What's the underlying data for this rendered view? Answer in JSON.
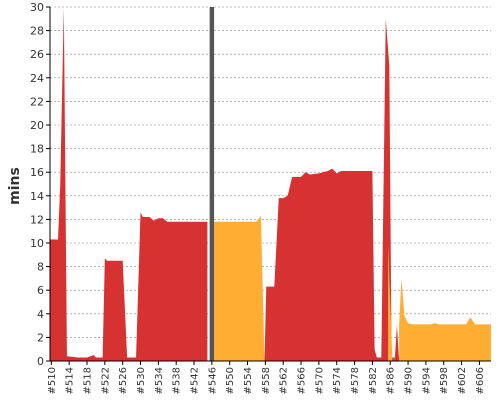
{
  "chart_data": {
    "type": "area",
    "ylabel": "mins",
    "ylim": [
      0,
      30
    ],
    "yticks": [
      "0",
      "2",
      "4",
      "6",
      "8",
      "10",
      "12",
      "14",
      "16",
      "18",
      "20",
      "22",
      "24",
      "26",
      "28",
      "30"
    ],
    "xticks": [
      "#510",
      "#514",
      "#518",
      "#522",
      "#526",
      "#530",
      "#534",
      "#538",
      "#542",
      "#546",
      "#550",
      "#554",
      "#558",
      "#562",
      "#566",
      "#570",
      "#574",
      "#578",
      "#582",
      "#586",
      "#590",
      "#594",
      "#598",
      "#602",
      "#606"
    ],
    "xlim": [
      509.7,
      608.6
    ],
    "grid": true,
    "colors": {
      "failed": "#d63232",
      "unstable": "#ffad33",
      "marker": "#555555",
      "grid": "#888888",
      "axis": "#000000"
    },
    "series": [
      {
        "status": "failed",
        "points": [
          [
            509.7,
            10.3
          ],
          [
            511.5,
            10.3
          ],
          [
            512,
            15
          ],
          [
            512.8,
            30
          ],
          [
            513.5,
            0.4
          ],
          [
            516,
            0.3
          ],
          [
            518,
            0.3
          ],
          [
            519.5,
            0.5
          ],
          [
            520,
            0.3
          ],
          [
            521.5,
            0.3
          ],
          [
            522,
            8.7
          ],
          [
            522.5,
            8.5
          ],
          [
            526,
            8.5
          ],
          [
            527,
            0.3
          ],
          [
            529,
            0.3
          ],
          [
            530,
            12.6
          ],
          [
            530.5,
            12.2
          ],
          [
            532,
            12.2
          ],
          [
            533,
            11.9
          ],
          [
            534,
            12.1
          ],
          [
            535,
            12.1
          ],
          [
            536,
            11.8
          ],
          [
            545,
            11.8
          ],
          [
            545,
            0
          ],
          [
            509.7,
            0
          ]
        ]
      },
      {
        "status": "failed",
        "points": [
          [
            546,
            0
          ],
          [
            546,
            11.8
          ],
          [
            546.5,
            0
          ],
          [
            546,
            0
          ]
        ]
      },
      {
        "status": "unstable",
        "points": [
          [
            546.5,
            0
          ],
          [
            546.5,
            11.8
          ],
          [
            556,
            11.8
          ],
          [
            557,
            12.3
          ],
          [
            557.8,
            0
          ]
        ]
      },
      {
        "status": "failed",
        "points": [
          [
            557.8,
            0
          ],
          [
            558.2,
            6.3
          ],
          [
            560,
            6.3
          ],
          [
            561,
            13.8
          ],
          [
            562,
            13.8
          ],
          [
            563,
            14
          ],
          [
            564,
            15.6
          ],
          [
            566,
            15.6
          ],
          [
            567,
            16
          ],
          [
            568,
            15.8
          ],
          [
            570,
            15.9
          ],
          [
            572,
            16.1
          ],
          [
            573,
            16.3
          ],
          [
            574,
            15.9
          ],
          [
            575,
            16.1
          ],
          [
            582,
            16.1
          ],
          [
            582.5,
            1
          ],
          [
            583,
            0.3
          ],
          [
            584,
            0.3
          ],
          [
            585,
            29
          ],
          [
            585.8,
            25
          ],
          [
            586.3,
            0.3
          ],
          [
            587,
            0.3
          ],
          [
            587,
            0
          ],
          [
            557.8,
            0
          ]
        ]
      },
      {
        "status": "unstable",
        "points": [
          [
            585.5,
            0
          ],
          [
            585.5,
            10
          ],
          [
            586.5,
            0
          ]
        ]
      },
      {
        "status": "failed",
        "points": [
          [
            587,
            0
          ],
          [
            587.5,
            3
          ],
          [
            588,
            0
          ]
        ]
      },
      {
        "status": "unstable",
        "points": [
          [
            588,
            0
          ],
          [
            588,
            3
          ],
          [
            588.5,
            7
          ],
          [
            589.2,
            3.8
          ],
          [
            590,
            3.2
          ],
          [
            591,
            3.1
          ],
          [
            595,
            3.1
          ],
          [
            596,
            3.2
          ],
          [
            597,
            3.1
          ],
          [
            603,
            3.1
          ],
          [
            604,
            3.7
          ],
          [
            605,
            3.1
          ],
          [
            608.6,
            3.1
          ],
          [
            608.6,
            0
          ]
        ]
      }
    ],
    "marker": {
      "x": 546,
      "width": 1,
      "height": 30
    }
  }
}
